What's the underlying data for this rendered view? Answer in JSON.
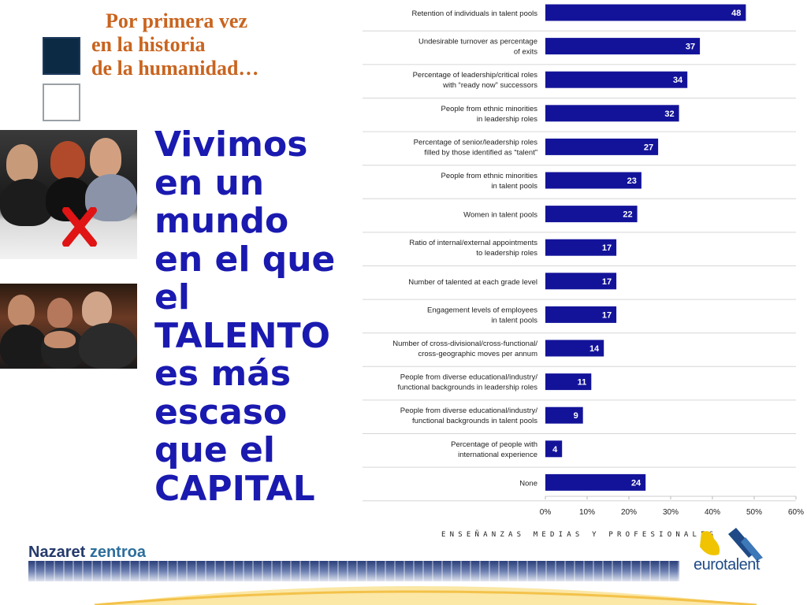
{
  "heading": {
    "line1": "Por primera vez",
    "line2": "en la historia",
    "line3": "de la humanidad…"
  },
  "main_text": {
    "lines": [
      "Vivimos",
      "en un",
      "mundo",
      "en el que",
      "el",
      "TALENTO",
      "es más",
      "escaso",
      "que el",
      "CAPITAL"
    ]
  },
  "chart_data": {
    "type": "bar",
    "orientation": "horizontal",
    "categories": [
      [
        "Retention of individuals in talent pools"
      ],
      [
        "Undesirable turnover as percentage",
        "of exits"
      ],
      [
        "Percentage of leadership/critical roles",
        "with “ready now” successors"
      ],
      [
        "People from ethnic minorities",
        "in leadership roles"
      ],
      [
        "Percentage of senior/leadership roles",
        "filled by those identified as “talent”"
      ],
      [
        "People from ethnic minorities",
        "in talent pools"
      ],
      [
        "Women in talent pools"
      ],
      [
        "Ratio of internal/external appointments",
        "to leadership roles"
      ],
      [
        "Number of talented at each grade level"
      ],
      [
        "Engagement levels of employees",
        "in talent pools"
      ],
      [
        "Number of cross-divisional/cross-functional/",
        "cross-geographic moves per annum"
      ],
      [
        "People from diverse educational/industry/",
        "functional backgrounds in leadership roles"
      ],
      [
        "People from diverse educational/industry/",
        "functional backgrounds in talent pools"
      ],
      [
        "Percentage of people with",
        "international experience"
      ],
      [
        "None"
      ]
    ],
    "values": [
      48,
      37,
      34,
      32,
      27,
      23,
      22,
      17,
      17,
      17,
      14,
      11,
      9,
      4,
      24
    ],
    "xlim": [
      0,
      60
    ],
    "x_ticks": [
      "0%",
      "10%",
      "20%",
      "30%",
      "40%",
      "50%",
      "60%"
    ],
    "title": "",
    "xlabel": "",
    "ylabel": "",
    "bar_color": "#13139a",
    "grid": true
  },
  "footer": {
    "brand_part1": "Nazaret",
    "brand_part2": "zentroa",
    "tagline": "ENSEÑANZAS MEDIAS Y PROFESIONALES",
    "logo_text": "eurotalent"
  },
  "colors": {
    "heading": "#c9641f",
    "main_text": "#1a1ab0",
    "brand": "#243a6b"
  }
}
